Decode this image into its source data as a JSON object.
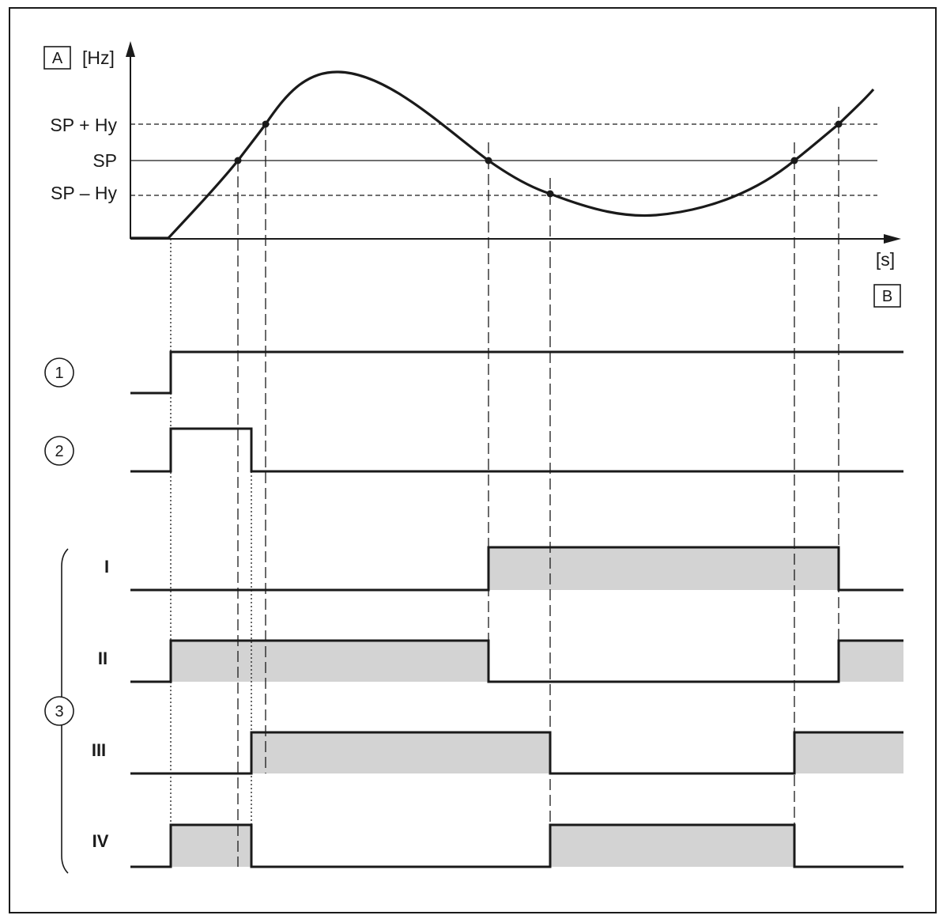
{
  "graph": {
    "box_a": "A",
    "y_unit": "[Hz]",
    "x_unit": "[s]",
    "box_b": "B",
    "levels": {
      "sp_plus_hy": "SP + Hy",
      "sp": "SP",
      "sp_minus_hy": "SP – Hy"
    }
  },
  "signals": {
    "one": "1",
    "two": "2",
    "three": "3"
  },
  "outputs": {
    "i": "I",
    "ii": "II",
    "iii": "III",
    "iv": "IV"
  }
}
